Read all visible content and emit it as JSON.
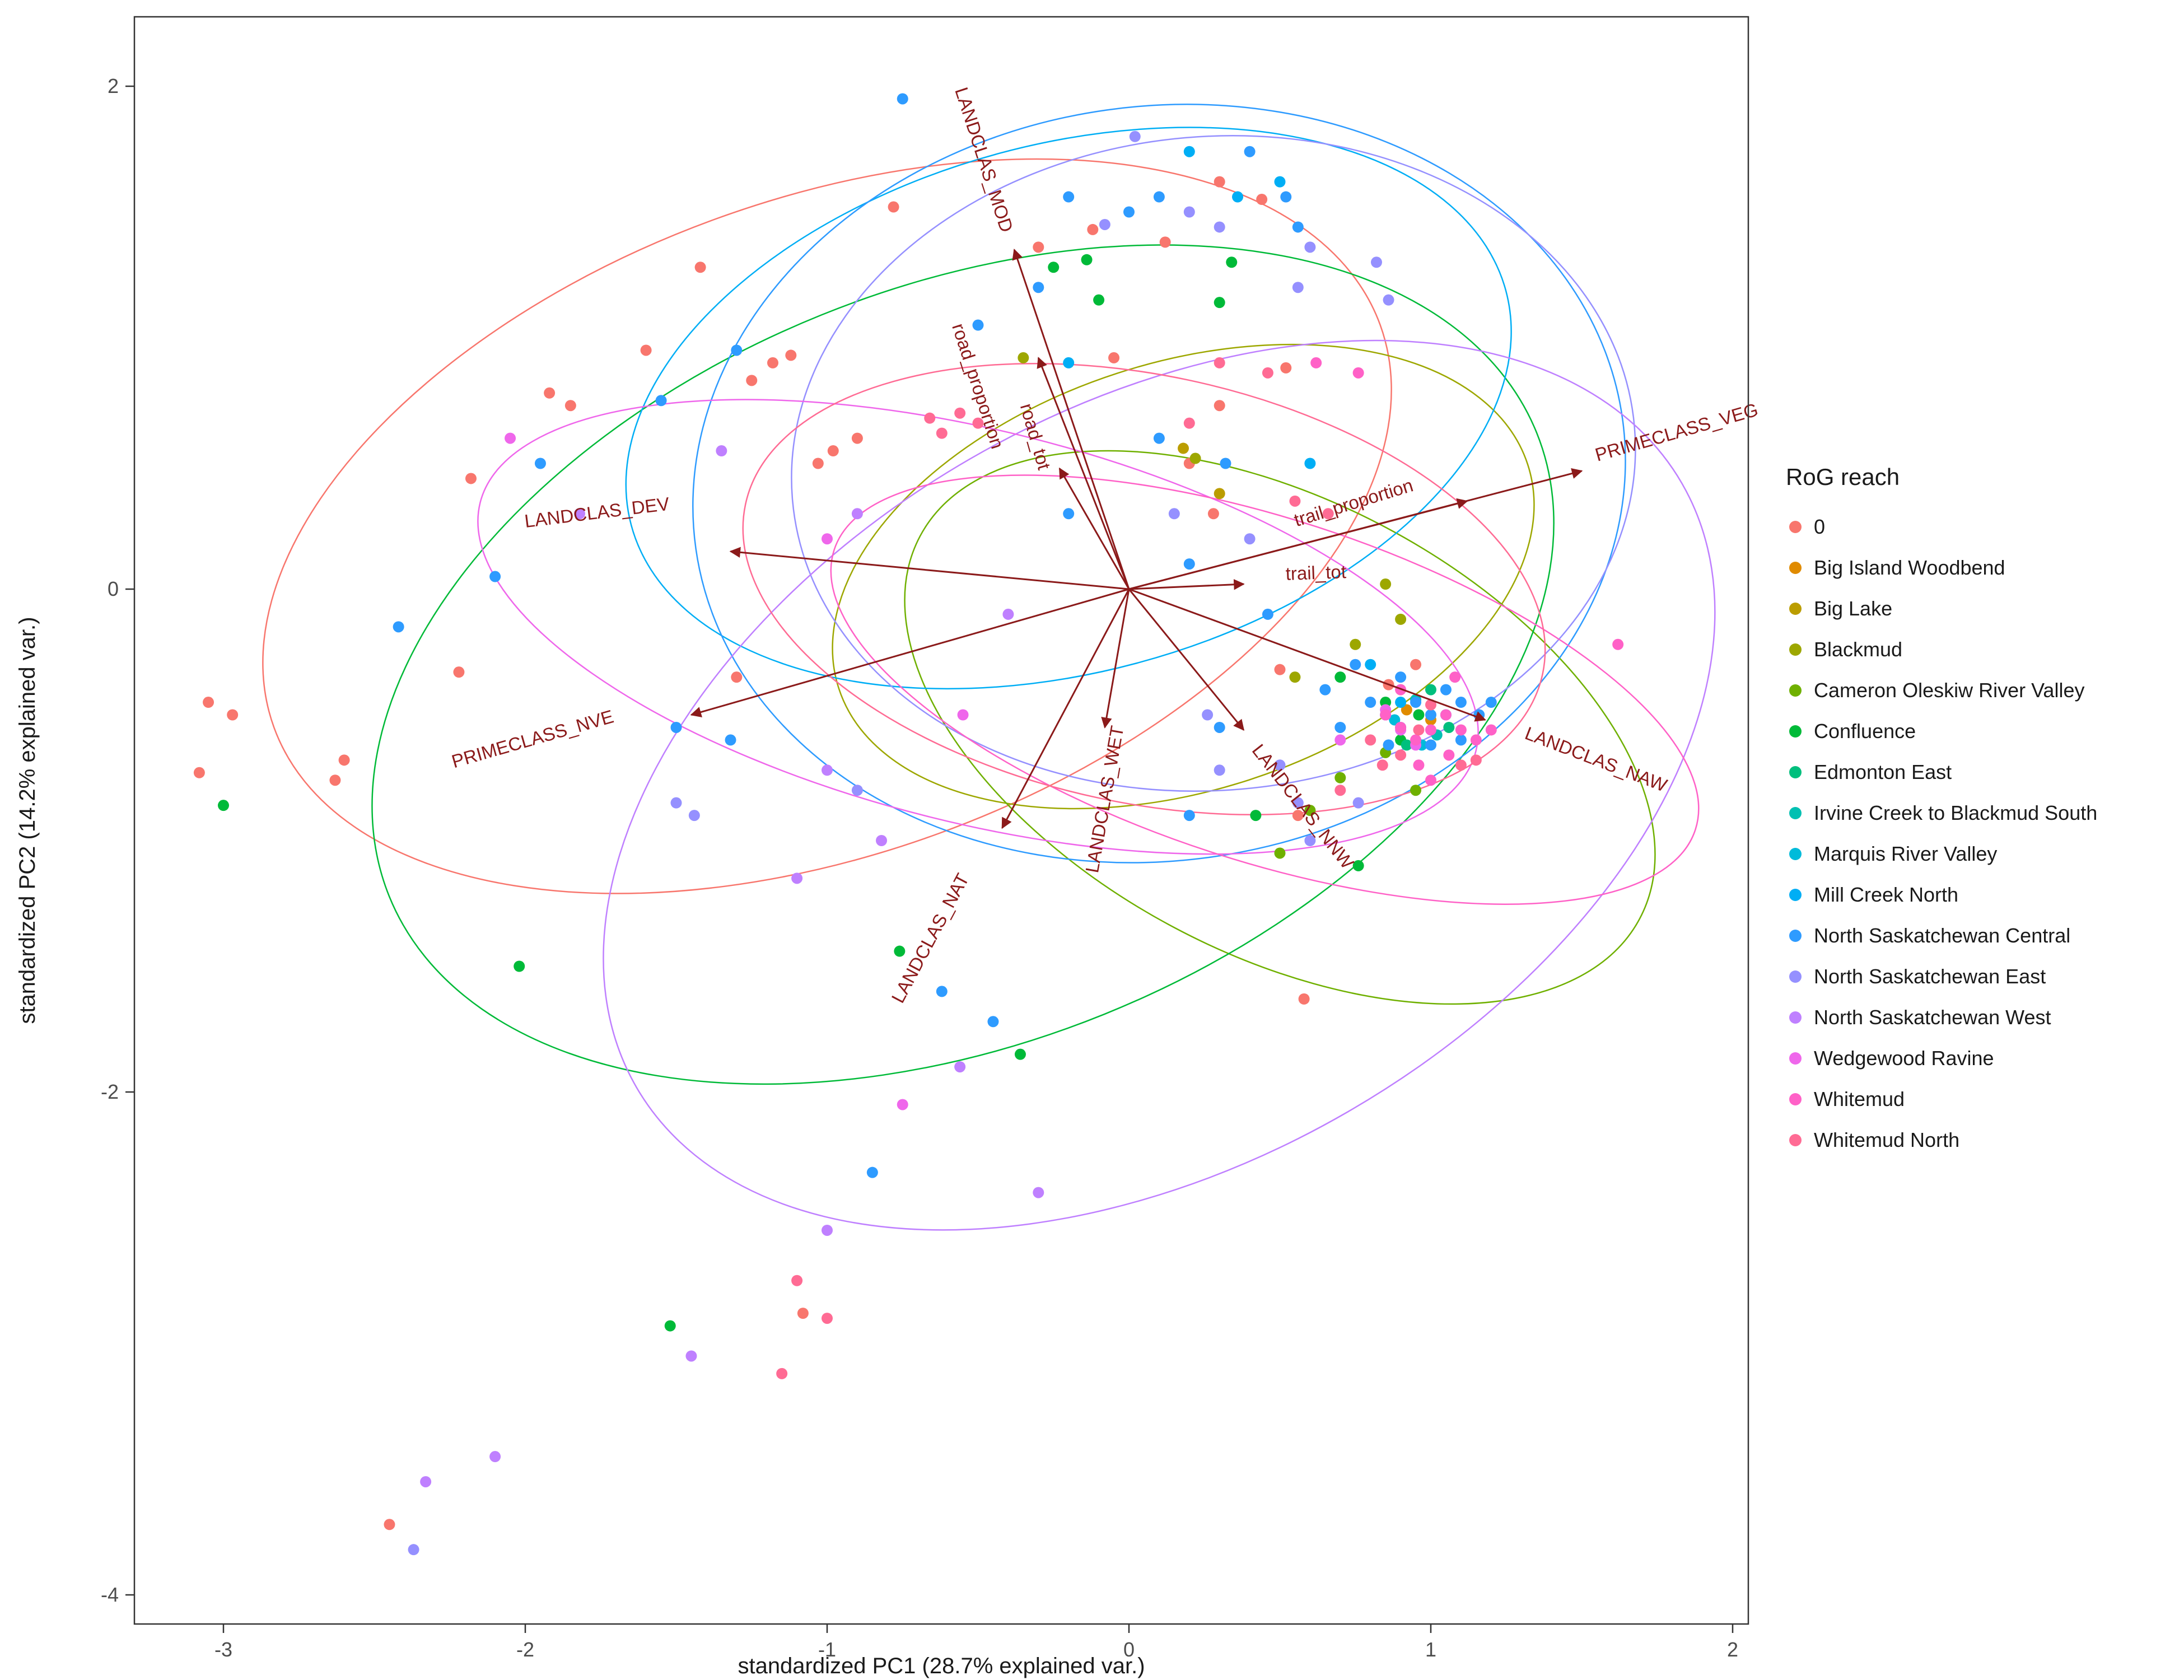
{
  "chart_data": {
    "type": "scatter",
    "title": "",
    "xlabel": "standardized PC1 (28.7% explained var.)",
    "ylabel": "standardized PC2 (14.2% explained var.)",
    "xlim": [
      -3.3,
      2.05
    ],
    "ylim": [
      -4.12,
      2.28
    ],
    "xticks": [
      -3,
      -2,
      -1,
      0,
      1,
      2
    ],
    "yticks": [
      2,
      0,
      -2,
      -4
    ],
    "grid": false,
    "legend_title": "RoG reach",
    "legend_position": "right",
    "loading_color": "#8B1A1A",
    "loadings": [
      {
        "label": "trail_tot",
        "x": 0.38,
        "y": 0.02,
        "lx": 0.62,
        "ly": 0.04,
        "rot": -2
      },
      {
        "label": "trail_proportion",
        "x": 1.12,
        "y": 0.35,
        "lx": 0.75,
        "ly": 0.32,
        "rot": -17
      },
      {
        "label": "PRIMECLASS_VEG",
        "x": 1.5,
        "y": 0.47,
        "lx": 1.82,
        "ly": 0.6,
        "rot": -16
      },
      {
        "label": "LANDCLAS_DEV",
        "x": -1.32,
        "y": 0.15,
        "lx": -1.76,
        "ly": 0.28,
        "rot": -7
      },
      {
        "label": "PRIMECLASS_NVE",
        "x": -1.45,
        "y": -0.5,
        "lx": -1.97,
        "ly": -0.62,
        "rot": -16
      },
      {
        "label": "LANDCLAS_MOD",
        "x": -0.38,
        "y": 1.35,
        "lx": -0.5,
        "ly": 1.7,
        "rot": 72
      },
      {
        "label": "road_proportion",
        "x": -0.3,
        "y": 0.92,
        "lx": -0.52,
        "ly": 0.8,
        "rot": 72
      },
      {
        "label": "road_tot",
        "x": -0.23,
        "y": 0.48,
        "lx": -0.33,
        "ly": 0.6,
        "rot": 74
      },
      {
        "label": "LANDCLAS_WET",
        "x": -0.08,
        "y": -0.55,
        "lx": -0.06,
        "ly": -0.84,
        "rot": -80
      },
      {
        "label": "LANDCLAS_NAW",
        "x": 1.18,
        "y": -0.52,
        "lx": 1.54,
        "ly": -0.7,
        "rot": 21
      },
      {
        "label": "LANDCLAS_NNW",
        "x": 0.38,
        "y": -0.56,
        "lx": 0.56,
        "ly": -0.88,
        "rot": 52
      },
      {
        "label": "LANDCLAS_NAT",
        "x": -0.42,
        "y": -0.95,
        "lx": -0.64,
        "ly": -1.4,
        "rot": -62
      }
    ],
    "series": [
      {
        "name": "0",
        "color": "#F8766D",
        "ellipse": {
          "cx": -1.0,
          "cy": 0.25,
          "a": 1.95,
          "b": 1.3,
          "rot": 20
        },
        "points": [
          [
            -3.05,
            -0.45
          ],
          [
            -2.97,
            -0.5
          ],
          [
            -3.08,
            -0.73
          ],
          [
            -2.6,
            -0.68
          ],
          [
            -2.63,
            -0.76
          ],
          [
            -2.18,
            0.44
          ],
          [
            -2.22,
            -0.33
          ],
          [
            -1.92,
            0.78
          ],
          [
            -1.85,
            0.73
          ],
          [
            -1.6,
            0.95
          ],
          [
            -1.42,
            1.28
          ],
          [
            -1.18,
            0.9
          ],
          [
            -1.12,
            0.93
          ],
          [
            -1.25,
            0.83
          ],
          [
            -0.98,
            0.55
          ],
          [
            -0.9,
            0.6
          ],
          [
            -1.03,
            0.5
          ],
          [
            -0.78,
            1.52
          ],
          [
            -0.3,
            1.36
          ],
          [
            -0.12,
            1.43
          ],
          [
            0.12,
            1.38
          ],
          [
            0.3,
            1.62
          ],
          [
            0.44,
            1.55
          ],
          [
            -0.05,
            0.92
          ],
          [
            0.3,
            0.73
          ],
          [
            0.52,
            0.88
          ],
          [
            0.2,
            0.5
          ],
          [
            0.28,
            0.3
          ],
          [
            0.5,
            -0.32
          ],
          [
            0.56,
            -0.9
          ],
          [
            0.58,
            -1.63
          ],
          [
            -1.3,
            -0.35
          ],
          [
            -2.45,
            -3.72
          ],
          [
            -1.08,
            -2.88
          ],
          [
            0.86,
            -0.38
          ],
          [
            0.95,
            -0.3
          ]
        ]
      },
      {
        "name": "Big Island Woodbend",
        "color": "#E08B00",
        "ellipse": null,
        "points": [
          [
            0.92,
            -0.48
          ],
          [
            1.0,
            -0.52
          ]
        ]
      },
      {
        "name": "Big Lake",
        "color": "#BB9D00",
        "ellipse": null,
        "points": [
          [
            0.18,
            0.56
          ],
          [
            0.3,
            0.38
          ]
        ]
      },
      {
        "name": "Blackmud",
        "color": "#9DA700",
        "ellipse": {
          "cx": 0.18,
          "cy": 0.05,
          "a": 1.2,
          "b": 0.85,
          "rot": 18
        },
        "points": [
          [
            -0.35,
            0.92
          ],
          [
            0.22,
            0.52
          ],
          [
            0.85,
            0.02
          ],
          [
            0.9,
            -0.12
          ],
          [
            0.75,
            -0.22
          ],
          [
            0.55,
            -0.35
          ]
        ]
      },
      {
        "name": "Cameron Oleskiw River Valley",
        "color": "#6FB000",
        "ellipse": {
          "cx": 0.5,
          "cy": -0.55,
          "a": 1.35,
          "b": 0.9,
          "rot": -28
        },
        "points": [
          [
            0.6,
            -0.88
          ],
          [
            0.7,
            -0.75
          ],
          [
            0.85,
            -0.65
          ],
          [
            0.5,
            -1.05
          ],
          [
            0.95,
            -0.8
          ]
        ]
      },
      {
        "name": "Confluence",
        "color": "#00BA38",
        "ellipse": {
          "cx": -0.55,
          "cy": -0.3,
          "a": 2.05,
          "b": 1.5,
          "rot": 22
        },
        "points": [
          [
            -0.25,
            1.28
          ],
          [
            -0.14,
            1.31
          ],
          [
            -0.1,
            1.15
          ],
          [
            0.34,
            1.3
          ],
          [
            0.3,
            1.14
          ],
          [
            -3.0,
            -0.86
          ],
          [
            -2.02,
            -1.5
          ],
          [
            -0.36,
            -1.85
          ],
          [
            -0.76,
            -1.44
          ],
          [
            -1.52,
            -2.93
          ],
          [
            0.85,
            -0.45
          ],
          [
            0.9,
            -0.6
          ],
          [
            0.96,
            -0.5
          ],
          [
            0.7,
            -0.35
          ],
          [
            0.76,
            -1.1
          ],
          [
            0.42,
            -0.9
          ]
        ]
      },
      {
        "name": "Edmonton East",
        "color": "#00BF7D",
        "ellipse": null,
        "points": [
          [
            1.0,
            -0.4
          ],
          [
            1.06,
            -0.55
          ],
          [
            0.92,
            -0.62
          ]
        ]
      },
      {
        "name": "Irvine Creek to Blackmud South",
        "color": "#00C0B2",
        "ellipse": null,
        "points": [
          [
            0.95,
            -0.44
          ],
          [
            1.02,
            -0.58
          ]
        ]
      },
      {
        "name": "Marquis River Valley",
        "color": "#00BBDA",
        "ellipse": null,
        "points": [
          [
            0.88,
            -0.52
          ],
          [
            0.97,
            -0.62
          ]
        ]
      },
      {
        "name": "Mill Creek North",
        "color": "#00AEF5",
        "ellipse": {
          "cx": -0.2,
          "cy": 0.72,
          "a": 1.5,
          "b": 1.05,
          "rot": 15
        },
        "points": [
          [
            0.2,
            1.74
          ],
          [
            0.36,
            1.56
          ],
          [
            0.5,
            1.62
          ],
          [
            -0.2,
            0.9
          ],
          [
            0.6,
            0.5
          ],
          [
            0.8,
            -0.3
          ],
          [
            0.9,
            -0.45
          ],
          [
            1.05,
            -0.5
          ]
        ]
      },
      {
        "name": "North Saskatchewan Central",
        "color": "#2E9BFF",
        "ellipse": {
          "cx": 0.1,
          "cy": 0.42,
          "a": 1.55,
          "b": 1.5,
          "rot": 8
        },
        "points": [
          [
            -0.75,
            1.95
          ],
          [
            -0.2,
            1.56
          ],
          [
            0.0,
            1.5
          ],
          [
            0.1,
            1.56
          ],
          [
            0.4,
            1.74
          ],
          [
            0.52,
            1.56
          ],
          [
            0.56,
            1.44
          ],
          [
            -0.3,
            1.2
          ],
          [
            -0.5,
            1.05
          ],
          [
            -1.3,
            0.95
          ],
          [
            -1.55,
            0.75
          ],
          [
            -1.95,
            0.5
          ],
          [
            -2.1,
            0.05
          ],
          [
            -2.42,
            -0.15
          ],
          [
            -1.5,
            -0.55
          ],
          [
            -1.32,
            -0.6
          ],
          [
            0.1,
            0.6
          ],
          [
            0.32,
            0.5
          ],
          [
            -0.2,
            0.3
          ],
          [
            0.2,
            0.1
          ],
          [
            0.46,
            -0.1
          ],
          [
            0.75,
            -0.3
          ],
          [
            0.8,
            -0.45
          ],
          [
            0.85,
            -0.5
          ],
          [
            0.9,
            -0.35
          ],
          [
            0.95,
            -0.45
          ],
          [
            1.0,
            -0.5
          ],
          [
            1.05,
            -0.4
          ],
          [
            1.1,
            -0.45
          ],
          [
            1.16,
            -0.5
          ],
          [
            0.9,
            -0.55
          ],
          [
            0.86,
            -0.62
          ],
          [
            1.0,
            -0.62
          ],
          [
            1.1,
            -0.6
          ],
          [
            1.2,
            -0.45
          ],
          [
            0.7,
            -0.55
          ],
          [
            0.65,
            -0.4
          ],
          [
            -0.62,
            -1.6
          ],
          [
            -0.85,
            -2.32
          ],
          [
            -0.45,
            -1.72
          ],
          [
            0.2,
            -0.9
          ],
          [
            0.3,
            -0.55
          ]
        ]
      },
      {
        "name": "North Saskatchewan East",
        "color": "#9590FF",
        "ellipse": {
          "cx": 0.28,
          "cy": 0.5,
          "a": 1.4,
          "b": 1.3,
          "rot": 5
        },
        "points": [
          [
            0.02,
            1.8
          ],
          [
            0.2,
            1.5
          ],
          [
            -0.08,
            1.45
          ],
          [
            0.6,
            1.36
          ],
          [
            0.82,
            1.3
          ],
          [
            0.56,
            1.2
          ],
          [
            0.86,
            1.15
          ],
          [
            0.3,
            1.44
          ],
          [
            0.5,
            -0.7
          ],
          [
            0.56,
            -0.85
          ],
          [
            0.6,
            -1.0
          ],
          [
            0.3,
            -0.72
          ],
          [
            0.26,
            -0.5
          ],
          [
            0.76,
            -0.85
          ],
          [
            -0.9,
            -0.8
          ],
          [
            -1.5,
            -0.85
          ],
          [
            -1.44,
            -0.9
          ],
          [
            0.15,
            0.3
          ],
          [
            0.4,
            0.2
          ],
          [
            -2.37,
            -3.82
          ]
        ]
      },
      {
        "name": "North Saskatchewan West",
        "color": "#BF80FF",
        "ellipse": {
          "cx": 0.1,
          "cy": -0.78,
          "a": 2.0,
          "b": 1.5,
          "rot": 30
        },
        "points": [
          [
            -1.35,
            0.55
          ],
          [
            -1.82,
            0.3
          ],
          [
            -0.9,
            0.3
          ],
          [
            -0.4,
            -0.1
          ],
          [
            -1.0,
            -0.72
          ],
          [
            -0.82,
            -1.0
          ],
          [
            -1.1,
            -1.15
          ],
          [
            -0.56,
            -1.9
          ],
          [
            -0.3,
            -2.4
          ],
          [
            -1.0,
            -2.55
          ],
          [
            -1.45,
            -3.05
          ],
          [
            -2.1,
            -3.45
          ],
          [
            -2.33,
            -3.55
          ]
        ]
      },
      {
        "name": "Wedgewood Ravine",
        "color": "#EF67EB",
        "ellipse": {
          "cx": -0.5,
          "cy": -0.15,
          "a": 1.7,
          "b": 0.78,
          "rot": -14
        },
        "points": [
          [
            -2.05,
            0.6
          ],
          [
            -1.0,
            0.2
          ],
          [
            -0.55,
            -0.5
          ],
          [
            0.85,
            -0.48
          ],
          [
            0.9,
            -0.56
          ],
          [
            0.95,
            -0.62
          ],
          [
            -0.75,
            -2.05
          ],
          [
            0.7,
            -0.6
          ]
        ]
      },
      {
        "name": "Whitemud",
        "color": "#FF61C7",
        "ellipse": {
          "cx": 0.45,
          "cy": -0.4,
          "a": 1.5,
          "b": 0.68,
          "rot": -18
        },
        "points": [
          [
            0.85,
            -0.5
          ],
          [
            0.9,
            -0.55
          ],
          [
            0.95,
            -0.6
          ],
          [
            1.0,
            -0.56
          ],
          [
            1.05,
            -0.5
          ],
          [
            1.1,
            -0.56
          ],
          [
            1.15,
            -0.6
          ],
          [
            0.96,
            -0.7
          ],
          [
            1.0,
            -0.76
          ],
          [
            0.9,
            -0.4
          ],
          [
            1.06,
            -0.66
          ],
          [
            1.2,
            -0.56
          ],
          [
            1.62,
            -0.22
          ],
          [
            0.62,
            0.9
          ],
          [
            0.76,
            0.86
          ],
          [
            1.08,
            -0.35
          ]
        ]
      },
      {
        "name": "Whitemud North",
        "color": "#FF6B94",
        "ellipse": {
          "cx": 0.05,
          "cy": 0.0,
          "a": 1.35,
          "b": 0.85,
          "rot": -12
        },
        "points": [
          [
            0.8,
            -0.6
          ],
          [
            0.84,
            -0.7
          ],
          [
            0.9,
            -0.66
          ],
          [
            0.96,
            -0.56
          ],
          [
            1.0,
            -0.46
          ],
          [
            0.7,
            -0.8
          ],
          [
            0.3,
            0.9
          ],
          [
            0.46,
            0.86
          ],
          [
            0.2,
            0.66
          ],
          [
            -0.5,
            0.66
          ],
          [
            -0.56,
            0.7
          ],
          [
            -0.62,
            0.62
          ],
          [
            -0.66,
            0.68
          ],
          [
            -1.1,
            -2.75
          ],
          [
            -1.0,
            -2.9
          ],
          [
            -1.15,
            -3.12
          ],
          [
            0.55,
            0.35
          ],
          [
            0.66,
            0.3
          ],
          [
            1.1,
            -0.7
          ],
          [
            1.15,
            -0.68
          ]
        ]
      }
    ]
  }
}
